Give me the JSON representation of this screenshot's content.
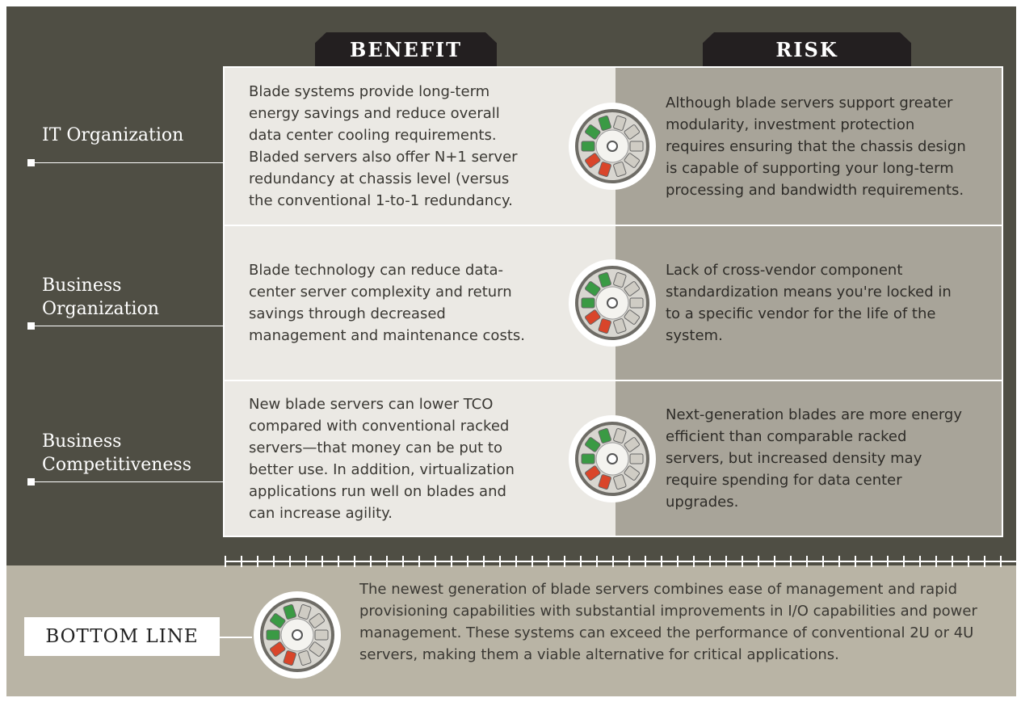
{
  "header": {
    "benefit": "BENEFIT",
    "risk": "RISK"
  },
  "rows": [
    {
      "label": "IT Organization",
      "benefit": "Blade systems provide long-term energy savings and reduce overall data center cooling requirements. Bladed servers also offer N+1 server redundancy at chassis level (versus the conventional 1-to-1 redundancy.",
      "risk": "Although blade servers support greater modularity, investment protection requires ensuring that the chassis design is capable of supporting your long-term processing and bandwidth requirements."
    },
    {
      "label": "Business Organization",
      "benefit": "Blade technology can reduce data-center server complexity and return savings through decreased management and maintenance costs.",
      "risk": "Lack of cross-vendor component standardization means you're locked in to a specific vendor for the life of the system."
    },
    {
      "label": "Business Competitiveness",
      "benefit": "New blade servers can lower TCO compared with conventional racked servers—that money can be put to better use. In addition, virtualization applications run well on blades and can increase agility.",
      "risk": "Next-generation blades are more energy efficient than comparable racked servers, but increased density may require spending for data center upgrades."
    }
  ],
  "bottom_line": {
    "label": "BOTTOM LINE",
    "text": "The newest generation of blade servers combines ease of management and rapid provisioning capabilities with substantial improvements in I/O capabilities and power management. These systems can exceed the performance of conventional 2U or 4U servers, making them a viable alternative for critical applications."
  }
}
